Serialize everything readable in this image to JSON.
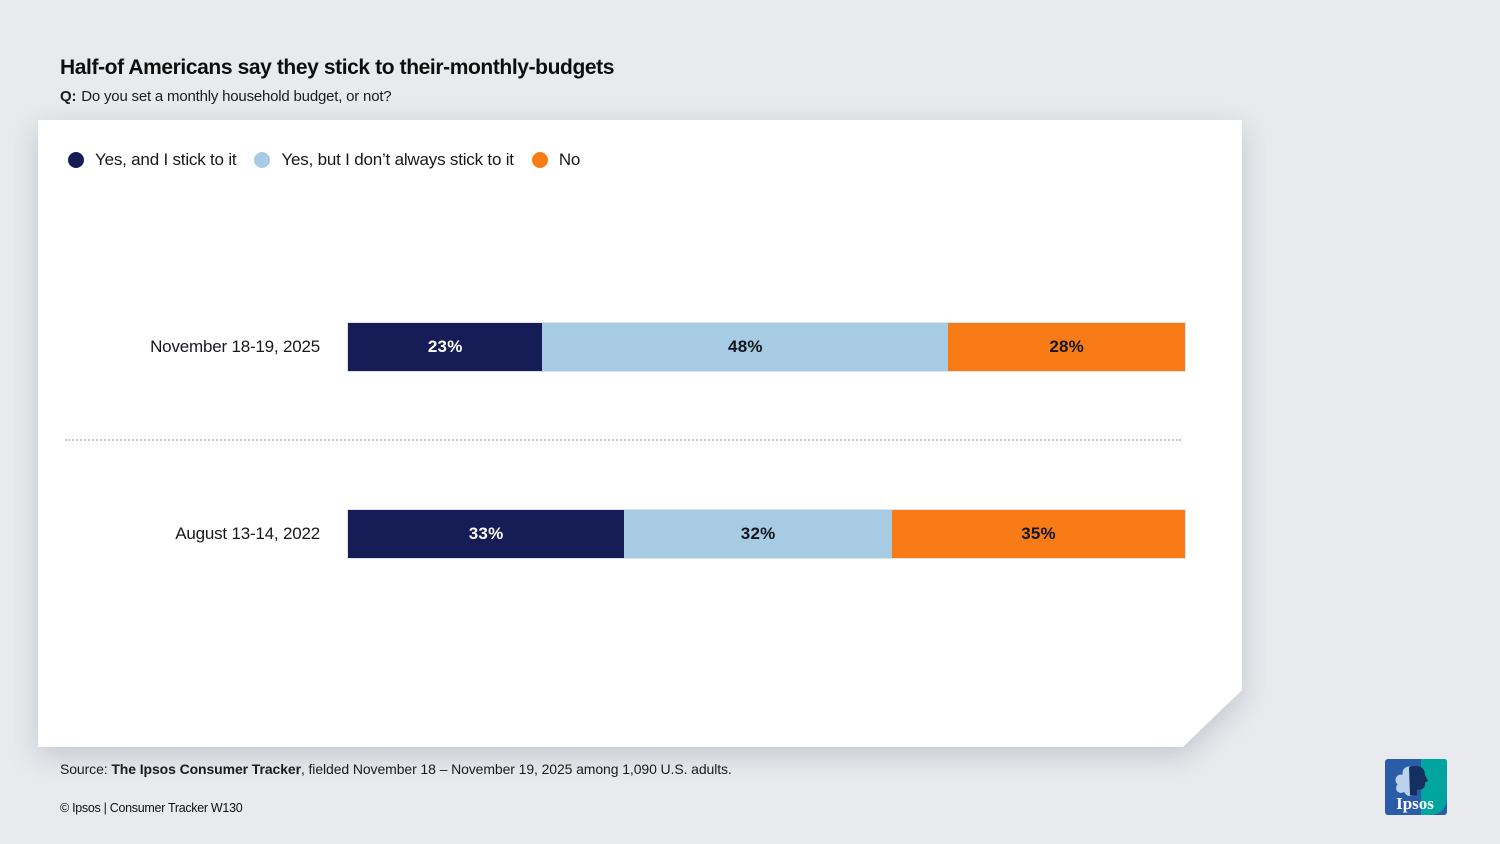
{
  "chart_data": {
    "type": "bar",
    "orientation": "horizontal",
    "stacked": true,
    "title": "Half-of Americans say they stick to their-monthly-budgets",
    "question_prefix": "Q:",
    "question": "Do you set a monthly household budget, or not?",
    "categories": [
      "November 18-19, 2025",
      "August 13-14, 2022"
    ],
    "series": [
      {
        "name": "Yes, and I stick to it",
        "color": "#161d56",
        "value_label_color": "#ffffff",
        "values": [
          23,
          33
        ]
      },
      {
        "name": "Yes, but I don’t always stick to it",
        "color": "#a6cbe3",
        "value_label_color": "#13161f",
        "values": [
          48,
          32
        ]
      },
      {
        "name": "No",
        "color": "#f97b16",
        "value_label_color": "#13161f",
        "values": [
          28,
          35
        ]
      }
    ],
    "value_suffix": "%",
    "legend_position": "top-left",
    "grid": false,
    "axes": "none"
  },
  "source": {
    "prefix": "Source: ",
    "bold": "The Ipsos Consumer Tracker",
    "rest": ", fielded November 18 – November 19, 2025 among 1,090 U.S. adults."
  },
  "footer": {
    "copyright": "© Ipsos | Consumer Tracker W130"
  },
  "logo": {
    "text": "Ipsos",
    "blue": "#2b5ca8",
    "teal": "#00a5a0"
  }
}
